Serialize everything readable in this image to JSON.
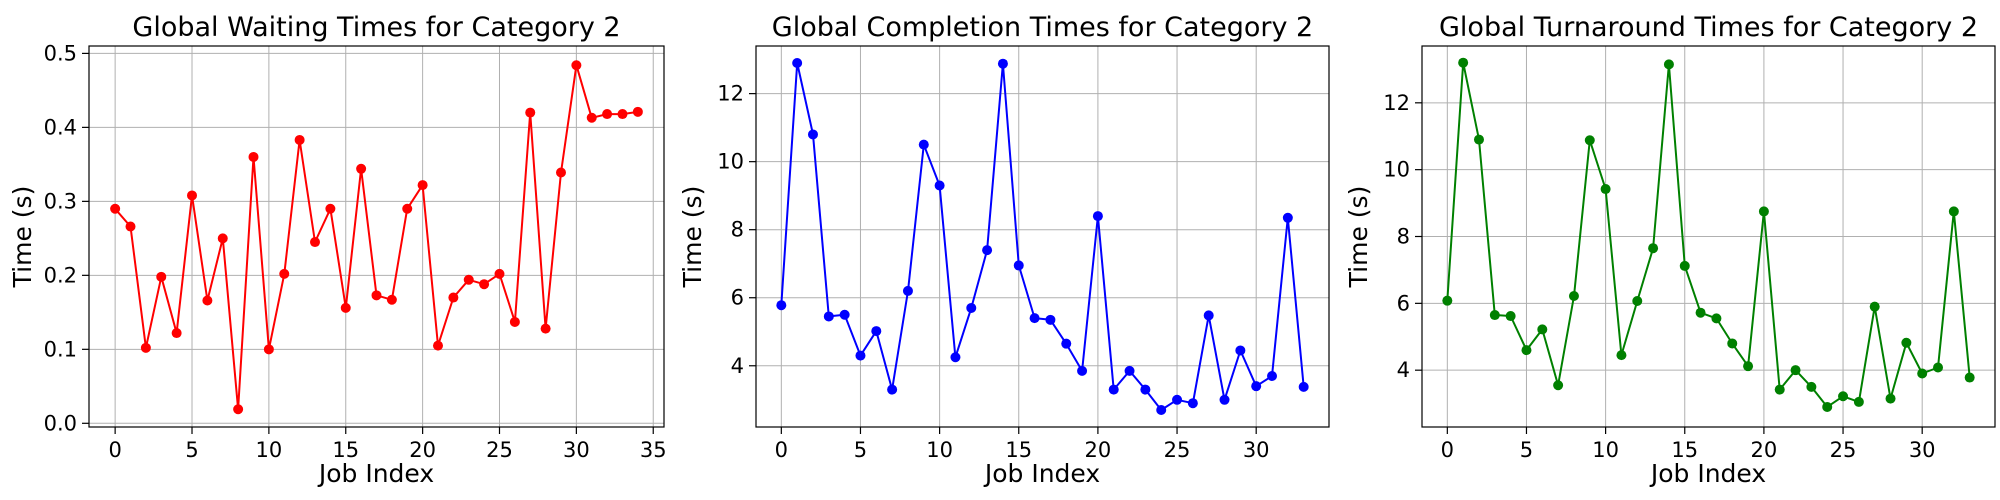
{
  "chart_data": [
    {
      "type": "line",
      "title": "Global Waiting Times for Category 2",
      "xlabel": "Job Index",
      "ylabel": "Time (s)",
      "color": "#ff0000",
      "xlim": [
        -1.7,
        35.7
      ],
      "ylim": [
        -0.005,
        0.51
      ],
      "xticks": [
        0,
        5,
        10,
        15,
        20,
        25,
        30,
        35
      ],
      "yticks": [
        0.0,
        0.1,
        0.2,
        0.3,
        0.4,
        0.5
      ],
      "ytick_labels": [
        "0.0",
        "0.1",
        "0.2",
        "0.3",
        "0.4",
        "0.5"
      ],
      "grid": true,
      "x": [
        0,
        1,
        2,
        3,
        4,
        5,
        6,
        7,
        8,
        9,
        10,
        11,
        12,
        13,
        14,
        15,
        16,
        17,
        18,
        19,
        20,
        21,
        22,
        23,
        24,
        25,
        26,
        27,
        28,
        29,
        30,
        31,
        32,
        33,
        34
      ],
      "y": [
        0.29,
        0.266,
        0.102,
        0.198,
        0.122,
        0.308,
        0.166,
        0.25,
        0.019,
        0.36,
        0.1,
        0.202,
        0.383,
        0.245,
        0.29,
        0.156,
        0.344,
        0.173,
        0.167,
        0.29,
        0.322,
        0.105,
        0.17,
        0.194,
        0.188,
        0.202,
        0.137,
        0.42,
        0.128,
        0.339,
        0.484,
        0.413,
        0.418,
        0.418,
        0.421
      ]
    },
    {
      "type": "line",
      "title": "Global Completion Times for Category 2",
      "xlabel": "Job Index",
      "ylabel": "Time (s)",
      "color": "#0000ff",
      "xlim": [
        -1.6,
        34.6
      ],
      "ylim": [
        2.2,
        13.4
      ],
      "xticks": [
        0,
        5,
        10,
        15,
        20,
        25,
        30
      ],
      "yticks": [
        4,
        6,
        8,
        10,
        12
      ],
      "ytick_labels": [
        "4",
        "6",
        "8",
        "10",
        "12"
      ],
      "grid": true,
      "x": [
        0,
        1,
        2,
        3,
        4,
        5,
        6,
        7,
        8,
        9,
        10,
        11,
        12,
        13,
        14,
        15,
        16,
        17,
        18,
        19,
        20,
        21,
        22,
        23,
        24,
        25,
        26,
        27,
        28,
        29,
        30,
        31,
        32,
        33
      ],
      "y": [
        5.78,
        12.9,
        10.8,
        5.45,
        5.5,
        4.3,
        5.02,
        3.3,
        6.2,
        10.5,
        9.3,
        4.25,
        5.7,
        7.4,
        12.88,
        6.95,
        5.4,
        5.35,
        4.65,
        3.85,
        8.4,
        3.3,
        3.85,
        3.3,
        2.7,
        3.0,
        2.9,
        5.48,
        3.0,
        4.45,
        3.4,
        3.7,
        8.35,
        3.38
      ]
    },
    {
      "type": "line",
      "title": "Global Turnaround Times for Category 2",
      "xlabel": "Job Index",
      "ylabel": "Time (s)",
      "color": "#008000",
      "xlim": [
        -1.6,
        34.6
      ],
      "ylim": [
        2.3,
        13.7
      ],
      "xticks": [
        0,
        5,
        10,
        15,
        20,
        25,
        30
      ],
      "yticks": [
        4,
        6,
        8,
        10,
        12
      ],
      "ytick_labels": [
        "4",
        "6",
        "8",
        "10",
        "12"
      ],
      "grid": true,
      "x": [
        0,
        1,
        2,
        3,
        4,
        5,
        6,
        7,
        8,
        9,
        10,
        11,
        12,
        13,
        14,
        15,
        16,
        17,
        18,
        19,
        20,
        21,
        22,
        23,
        24,
        25,
        26,
        27,
        28,
        29,
        30,
        31,
        32,
        33
      ],
      "y": [
        6.08,
        13.2,
        10.9,
        5.65,
        5.62,
        4.6,
        5.22,
        3.55,
        6.22,
        10.88,
        9.42,
        4.45,
        6.07,
        7.65,
        13.15,
        7.12,
        5.72,
        5.55,
        4.8,
        4.12,
        8.75,
        3.42,
        4.0,
        3.5,
        2.9,
        3.22,
        3.05,
        5.9,
        3.15,
        4.82,
        3.9,
        4.08,
        8.75,
        3.78
      ]
    }
  ]
}
